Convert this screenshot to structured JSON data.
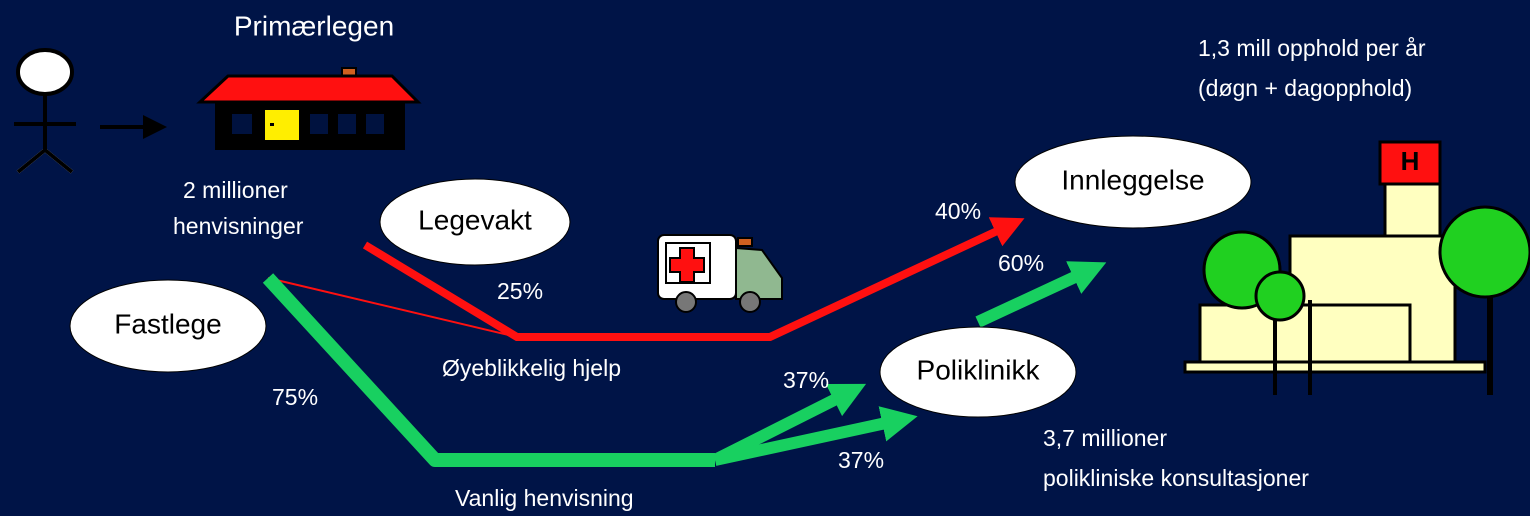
{
  "header": {
    "title": "Primærlegen"
  },
  "referrals": [
    "2 millioner",
    "henvisninger"
  ],
  "nodes": [
    {
      "label": "Legevakt"
    },
    {
      "label": "Fastlege"
    },
    {
      "label": "Innleggelse"
    },
    {
      "label": "Poliklinikk"
    }
  ],
  "flows": {
    "emergency": {
      "label": "Øyeblikkelig hjelp",
      "share": "25%"
    },
    "regular": {
      "label": "Vanlig henvisning",
      "share": "75%"
    },
    "to_admission": "40%",
    "to_outpatient": "60%",
    "regular_split": [
      "37%",
      "37%"
    ]
  },
  "hospital_stays": [
    "1,3 mill opphold per år",
    "(døgn + dagopphold)"
  ],
  "outpatient": [
    "3,7 millioner",
    "polikliniske konsultasjoner"
  ]
}
